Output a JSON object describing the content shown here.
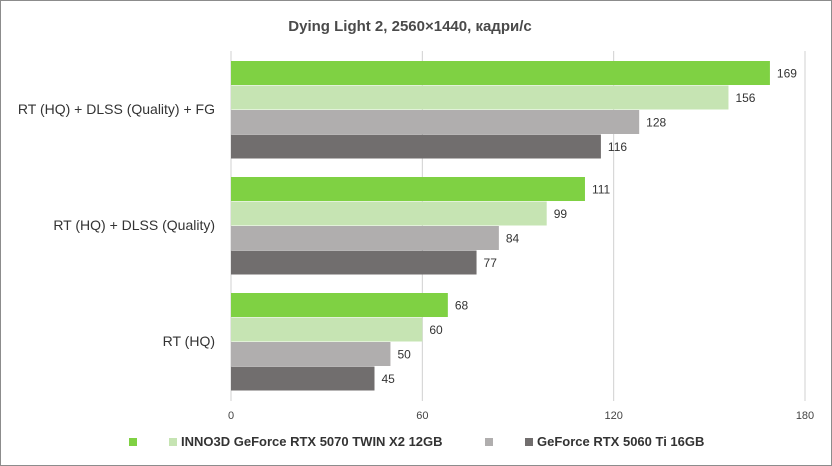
{
  "chart_data": {
    "type": "bar",
    "orientation": "horizontal",
    "title": "Dying Light 2, 2560×1440, кадри/с",
    "categories": [
      "RT (HQ) + DLSS (Quality) + FG",
      "RT (HQ) + DLSS (Quality)",
      "RT (HQ)"
    ],
    "series": [
      {
        "name": "",
        "color": "#7fd143",
        "values": [
          169,
          111,
          68
        ]
      },
      {
        "name": "INNO3D GeForce RTX 5070 TWIN X2 12GB",
        "color": "#c6e4b3",
        "values": [
          156,
          99,
          60
        ]
      },
      {
        "name": "",
        "color": "#b0aeae",
        "values": [
          128,
          84,
          50
        ]
      },
      {
        "name": "GeForce RTX 5060 Ti 16GB",
        "color": "#716e6e",
        "values": [
          116,
          77,
          45
        ]
      }
    ],
    "xlim": [
      0,
      180
    ],
    "xticks": [
      0,
      60,
      120,
      180
    ],
    "grid": true,
    "legend_position": "bottom"
  }
}
